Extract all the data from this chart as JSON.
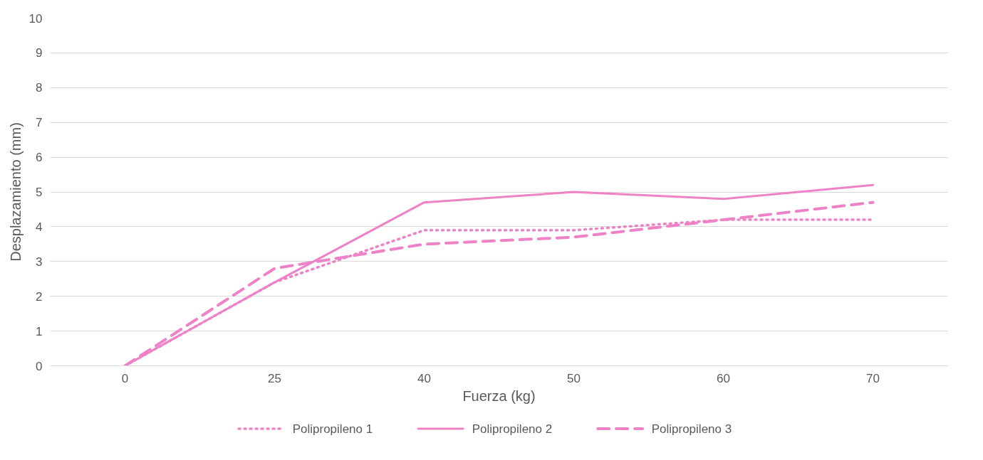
{
  "chart_data": {
    "type": "line",
    "xlabel": "Fuerza (kg)",
    "ylabel": "Desplazamiento (mm)",
    "categories": [
      "0",
      "25",
      "40",
      "50",
      "60",
      "70"
    ],
    "series": [
      {
        "name": "Polipropileno 1",
        "color": "#ee82c6",
        "line_style": "dotted",
        "values": [
          0,
          2.4,
          3.9,
          3.9,
          4.2,
          4.2
        ]
      },
      {
        "name": "Polipropileno 2",
        "color": "#ee82c6",
        "line_style": "solid",
        "values": [
          0,
          2.4,
          4.7,
          5.0,
          4.8,
          5.2
        ]
      },
      {
        "name": "Polipropileno 3",
        "color": "#ee82c6",
        "line_style": "dashed",
        "values": [
          0,
          2.8,
          3.5,
          3.7,
          4.2,
          4.7
        ]
      }
    ],
    "ylim": [
      0,
      10
    ],
    "yticks": [
      0,
      1,
      2,
      3,
      4,
      5,
      6,
      7,
      8,
      9,
      10
    ],
    "grid": "y",
    "legend": "bottom",
    "marker": "none"
  }
}
